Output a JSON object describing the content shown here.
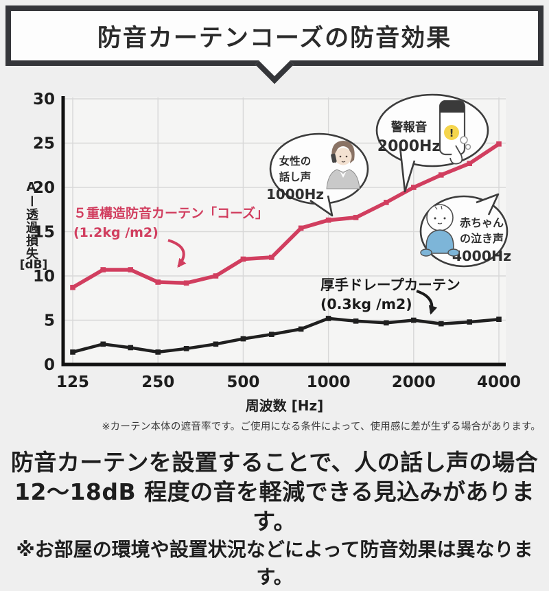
{
  "banner": {
    "title": "防音カーテンコーズの防音効果"
  },
  "chart_data": {
    "type": "line",
    "xlabel": "周波数 [Hz]",
    "ylabel": "Aー透過損失",
    "ylabel_unit": "[dB]",
    "x_scale": "log2",
    "xlim": [
      125,
      4000
    ],
    "ylim": [
      0,
      30
    ],
    "x_ticks": [
      125,
      250,
      500,
      1000,
      2000,
      4000
    ],
    "y_ticks": [
      0,
      5,
      10,
      15,
      20,
      25,
      30
    ],
    "grid": true,
    "frequencies_hz": [
      125,
      160,
      200,
      250,
      315,
      400,
      500,
      630,
      800,
      1000,
      1250,
      1600,
      2000,
      2500,
      3150,
      4000
    ],
    "series": [
      {
        "name": "５重構造防音カーテン「コーズ」",
        "detail": "(1.2kg /m2)",
        "color": "#d13e5f",
        "values": [
          8.7,
          10.7,
          10.7,
          9.3,
          9.2,
          10.0,
          11.9,
          12.1,
          15.4,
          16.3,
          16.6,
          18.3,
          20.0,
          21.4,
          22.7,
          24.9
        ]
      },
      {
        "name": "厚手ドレープカーテン",
        "detail": "(0.3kg /m2)",
        "color": "#1f1f1f",
        "values": [
          1.4,
          2.3,
          1.9,
          1.4,
          1.8,
          2.3,
          2.9,
          3.4,
          4.0,
          5.2,
          4.9,
          4.7,
          5.0,
          4.6,
          4.8,
          5.1
        ]
      }
    ],
    "annotations": [
      {
        "id": "woman-voice",
        "lines": [
          "女性の",
          "話し声",
          "1000Hz"
        ]
      },
      {
        "id": "alarm",
        "lines": [
          "警報音",
          "2000Hz"
        ]
      },
      {
        "id": "baby-cry",
        "lines": [
          "赤ちゃん",
          "の泣き声",
          "4000Hz"
        ]
      }
    ]
  },
  "note": "※カーテン本体の遮音率です。ご使用になる条件によって、使用感に差が生ずる場合があります。",
  "footer": {
    "line1": "防音カーテンを設置することで、人の話し声の場合",
    "line2": "12〜18dB 程度の音を軽減できる見込みがあります。",
    "line3": "※お部屋の環境や設置状況などによって防音効果は異なります。"
  },
  "colors": {
    "accent_pink": "#d13e5f",
    "line_black": "#1f1f1f",
    "banner_border": "#35363a",
    "background": "#efefef",
    "grid": "#d8d8d8"
  }
}
